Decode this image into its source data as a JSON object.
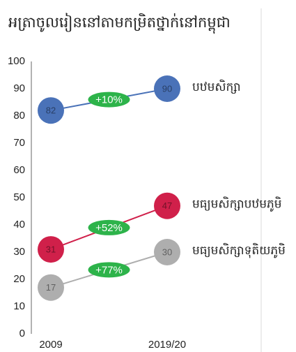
{
  "chart_data": {
    "type": "line",
    "title": "អត្រាចូលរៀននៅតាមកម្រិតថ្នាក់នៅកម្ពុជា",
    "categories": [
      "2009",
      "2019/20"
    ],
    "series": [
      {
        "name": "បឋមសិក្សា",
        "color": "#4a72b8",
        "values": [
          82,
          90
        ],
        "annotation": "+10%"
      },
      {
        "name": "មធ្យមសិក្សាបឋមភូមិ",
        "color": "#d0204a",
        "values": [
          31,
          47
        ],
        "annotation": "+52%"
      },
      {
        "name": "មធ្យមសិក្សាទុតិយភូមិ",
        "color": "#aeaeae",
        "values": [
          17,
          30
        ],
        "annotation": "+77%"
      }
    ],
    "annotation_color": "#2db34a",
    "ylim": [
      0,
      100
    ],
    "yticks": [
      0,
      10,
      20,
      30,
      40,
      50,
      60,
      70,
      80,
      90,
      100
    ]
  }
}
